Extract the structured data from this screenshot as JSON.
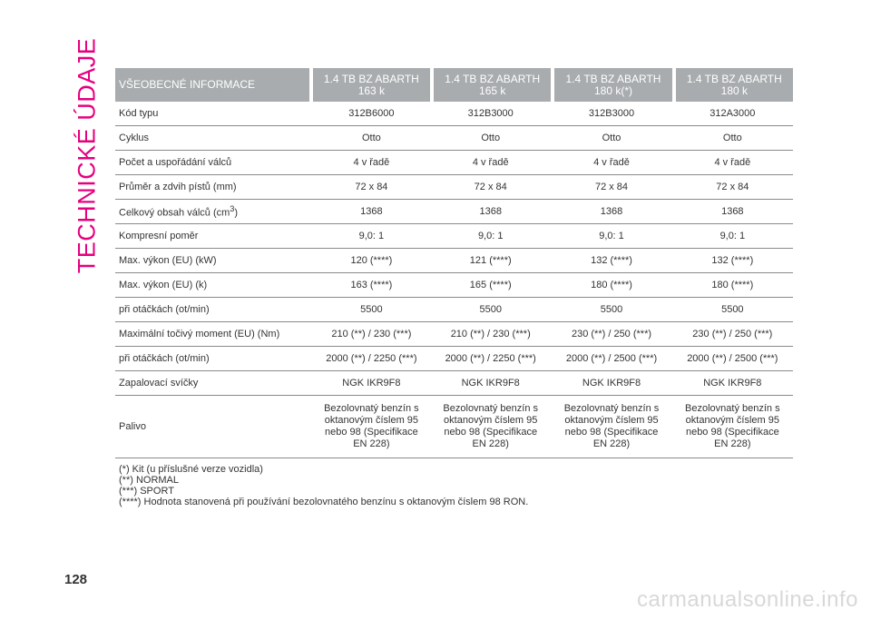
{
  "side_title": "TECHNICKÉ ÚDAJE",
  "table": {
    "header_label": "VŠEOBECNÉ INFORMACE",
    "columns": [
      {
        "line1": "1.4 TB BZ ABARTH",
        "line2": "163 k"
      },
      {
        "line1": "1.4 TB BZ ABARTH",
        "line2": "165 k"
      },
      {
        "line1": "1.4 TB BZ ABARTH",
        "line2": "180 k(*)"
      },
      {
        "line1": "1.4 TB BZ ABARTH",
        "line2": "180 k"
      }
    ],
    "rows": [
      {
        "label": "Kód typu",
        "values": [
          "312B6000",
          "312B3000",
          "312B3000",
          "312A3000"
        ]
      },
      {
        "label": "Cyklus",
        "values": [
          "Otto",
          "Otto",
          "Otto",
          "Otto"
        ]
      },
      {
        "label": "Počet a uspořádání válců",
        "values": [
          "4 v řadě",
          "4 v řadě",
          "4 v řadě",
          "4 v řadě"
        ]
      },
      {
        "label": "Průměr a zdvih pístů (mm)",
        "values": [
          "72 x 84",
          "72 x 84",
          "72 x 84",
          "72 x 84"
        ]
      },
      {
        "label": "Celkový obsah válců (cm",
        "label_sup": "3",
        "label_suffix": ")",
        "values": [
          "1368",
          "1368",
          "1368",
          "1368"
        ]
      },
      {
        "label": "Kompresní poměr",
        "values": [
          "9,0: 1",
          "9,0: 1",
          "9,0: 1",
          "9,0: 1"
        ]
      },
      {
        "label": "Max. výkon (EU) (kW)",
        "values": [
          "120 (****)",
          "121 (****)",
          "132 (****)",
          "132 (****)"
        ]
      },
      {
        "label": "Max. výkon (EU) (k)",
        "values": [
          "163 (****)",
          "165 (****)",
          "180 (****)",
          "180 (****)"
        ]
      },
      {
        "label": "při otáčkách (ot/min)",
        "values": [
          "5500",
          "5500",
          "5500",
          "5500"
        ]
      },
      {
        "label": "Maximální točivý moment (EU) (Nm)",
        "values": [
          "210 (**) / 230 (***)",
          "210 (**) / 230 (***)",
          "230 (**) / 250 (***)",
          "230 (**) / 250 (***)"
        ]
      },
      {
        "label": "při otáčkách (ot/min)",
        "values": [
          "2000 (**) / 2250 (***)",
          "2000 (**) / 2250 (***)",
          "2000 (**) / 2500 (***)",
          "2000 (**) / 2500 (***)"
        ]
      },
      {
        "label": "Zapalovací svíčky",
        "values": [
          "NGK IKR9F8",
          "NGK IKR9F8",
          "NGK IKR9F8",
          "NGK IKR9F8"
        ]
      }
    ],
    "fuel": {
      "label": "Palivo",
      "lines": [
        "Bezolovnatý benzín s",
        "oktanovým číslem 95",
        "nebo 98 (Specifikace",
        "EN 228)"
      ]
    }
  },
  "notes": [
    "(*) Kit (u příslušné verze vozidla)",
    "(**) NORMAL",
    "(***) SPORT",
    "(****) Hodnota stanovená při používání bezolovnatého benzínu s oktanovým číslem 98 RON."
  ],
  "page_number": "128",
  "watermark": "carmanualsonline.info",
  "colors": {
    "accent": "#e6007e",
    "header_bg": "#a8acae"
  }
}
